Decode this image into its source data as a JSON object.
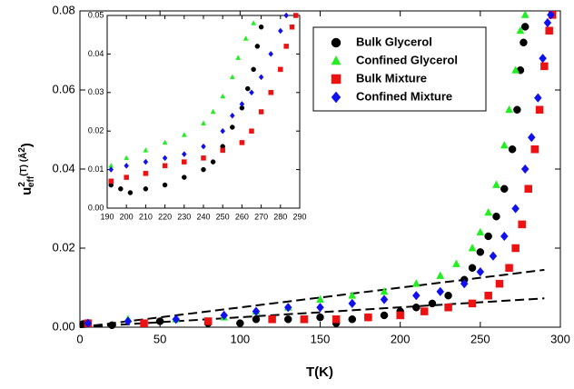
{
  "chart_data": [
    {
      "type": "scatter",
      "xlabel": "T(K)",
      "ylabel": [
        "u",
        "2",
        "eff",
        "(T) (Å",
        "2",
        ")"
      ],
      "xlim": [
        0,
        300
      ],
      "xticks": [
        0,
        50,
        100,
        150,
        200,
        250,
        300
      ],
      "ylim": [
        0,
        0.08
      ],
      "yticks": [
        {
          "value": 0,
          "label": "0.00"
        },
        {
          "value": 0.02,
          "label": "0.02"
        },
        {
          "value": 0.04,
          "label": "0.04"
        },
        {
          "value": 0.06,
          "label": "0.06"
        },
        {
          "value": 0.08,
          "label": "0.08"
        }
      ],
      "series": [
        {
          "name": "Bulk Glycerol",
          "color": "#000000",
          "marker": "circle",
          "x": [
            2,
            20,
            50,
            80,
            100,
            110,
            130,
            150,
            160,
            170,
            180,
            190,
            200,
            210,
            220,
            230,
            240,
            245,
            250,
            255,
            260,
            265,
            270,
            273,
            275,
            277,
            278
          ],
          "values": [
            0.0008,
            0.0005,
            0.0015,
            0.001,
            0.001,
            0.002,
            0.002,
            0.0025,
            0.001,
            0.002,
            0.0025,
            0.003,
            0.004,
            0.005,
            0.006,
            0.008,
            0.012,
            0.015,
            0.019,
            0.023,
            0.028,
            0.035,
            0.045,
            0.055,
            0.065,
            0.072,
            0.076
          ]
        },
        {
          "name": "Confined Glycerol",
          "color": "#22ee22",
          "marker": "triangle",
          "x": [
            5,
            30,
            60,
            90,
            110,
            130,
            150,
            170,
            190,
            210,
            225,
            235,
            245,
            250,
            255,
            260,
            265,
            268,
            272,
            275,
            278
          ],
          "values": [
            0.001,
            0.002,
            0.002,
            0.0025,
            0.004,
            0.005,
            0.007,
            0.008,
            0.009,
            0.011,
            0.013,
            0.016,
            0.02,
            0.024,
            0.029,
            0.036,
            0.046,
            0.055,
            0.065,
            0.075,
            0.079
          ]
        },
        {
          "name": "Bulk Mixture",
          "color": "#ee1111",
          "marker": "square",
          "x": [
            5,
            40,
            80,
            120,
            140,
            160,
            180,
            200,
            215,
            230,
            245,
            255,
            262,
            268,
            272,
            276,
            280,
            284,
            287,
            290,
            293,
            295
          ],
          "values": [
            0.001,
            0.001,
            0.0015,
            0.002,
            0.002,
            0.002,
            0.0025,
            0.003,
            0.004,
            0.005,
            0.006,
            0.008,
            0.011,
            0.015,
            0.02,
            0.026,
            0.035,
            0.045,
            0.055,
            0.066,
            0.075,
            0.079
          ]
        },
        {
          "name": "Confined Mixture",
          "color": "#1111ee",
          "marker": "diamond",
          "x": [
            5,
            30,
            60,
            90,
            110,
            130,
            150,
            170,
            190,
            210,
            225,
            240,
            250,
            258,
            265,
            272,
            278,
            282,
            286,
            289,
            292,
            294
          ],
          "values": [
            0.001,
            0.0015,
            0.002,
            0.003,
            0.004,
            0.005,
            0.005,
            0.006,
            0.007,
            0.008,
            0.009,
            0.011,
            0.014,
            0.018,
            0.023,
            0.03,
            0.04,
            0.048,
            0.058,
            0.068,
            0.077,
            0.079
          ]
        }
      ],
      "fit_lines": [
        {
          "x": [
            0,
            290
          ],
          "values": [
            0,
            0.0145
          ]
        },
        {
          "x": [
            0,
            290
          ],
          "values": [
            0,
            0.0073
          ]
        }
      ]
    },
    {
      "type": "scatter",
      "xlim": [
        190,
        290
      ],
      "xticks": [
        190,
        200,
        210,
        220,
        230,
        240,
        250,
        260,
        270,
        280,
        290
      ],
      "ylim": [
        0,
        0.05
      ],
      "yticks": [
        {
          "value": 0,
          "label": "0.00"
        },
        {
          "value": 0.01,
          "label": "0.01"
        },
        {
          "value": 0.02,
          "label": "0.02"
        },
        {
          "value": 0.03,
          "label": "0.03"
        },
        {
          "value": 0.04,
          "label": "0.04"
        },
        {
          "value": 0.05,
          "label": "0.05"
        }
      ],
      "series": [
        {
          "color": "#000000",
          "marker": "circle",
          "x": [
            192,
            197,
            202,
            210,
            220,
            230,
            240,
            245,
            250,
            255,
            260,
            263,
            266,
            268,
            270
          ],
          "values": [
            0.006,
            0.005,
            0.004,
            0.005,
            0.006,
            0.008,
            0.01,
            0.012,
            0.016,
            0.021,
            0.026,
            0.031,
            0.036,
            0.042,
            0.047
          ]
        },
        {
          "color": "#22ee22",
          "marker": "triangle",
          "x": [
            192,
            200,
            210,
            220,
            230,
            240,
            245,
            250,
            255,
            258,
            262,
            266
          ],
          "values": [
            0.011,
            0.013,
            0.015,
            0.017,
            0.019,
            0.022,
            0.025,
            0.029,
            0.034,
            0.039,
            0.044,
            0.048
          ]
        },
        {
          "color": "#ee1111",
          "marker": "square",
          "x": [
            192,
            200,
            210,
            220,
            230,
            240,
            250,
            260,
            265,
            270,
            275,
            280,
            283,
            286,
            288
          ],
          "values": [
            0.007,
            0.008,
            0.009,
            0.011,
            0.012,
            0.013,
            0.015,
            0.017,
            0.02,
            0.025,
            0.03,
            0.036,
            0.042,
            0.047,
            0.05
          ]
        },
        {
          "color": "#1111ee",
          "marker": "diamond",
          "x": [
            192,
            200,
            210,
            220,
            230,
            240,
            250,
            255,
            260,
            265,
            270,
            275,
            280,
            283
          ],
          "values": [
            0.01,
            0.011,
            0.012,
            0.013,
            0.014,
            0.016,
            0.02,
            0.024,
            0.027,
            0.03,
            0.034,
            0.04,
            0.046,
            0.05
          ]
        }
      ]
    }
  ]
}
